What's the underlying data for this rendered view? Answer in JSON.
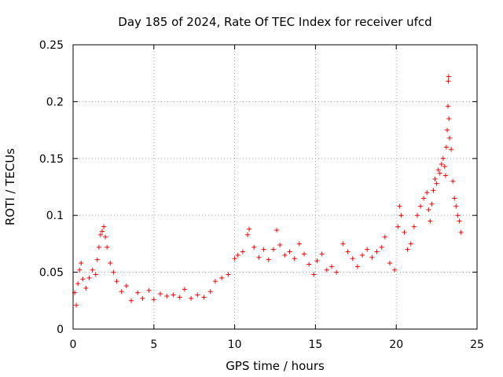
{
  "chart_data": {
    "type": "scatter",
    "title": "Day 185 of 2024, Rate Of TEC Index for receiver ufcd",
    "xlabel": "GPS time / hours",
    "ylabel": "ROTI / TECUs",
    "xlim": [
      0,
      25
    ],
    "ylim": [
      0,
      0.25
    ],
    "xticks": [
      0,
      5,
      10,
      15,
      20,
      25
    ],
    "xtick_labels": [
      "0",
      "5",
      "10",
      "15",
      "20",
      "25"
    ],
    "yticks": [
      0,
      0.05,
      0.1,
      0.15,
      0.2,
      0.25
    ],
    "ytick_labels": [
      "0",
      "0.05",
      "0.1",
      "0.15",
      "0.2",
      "0.25"
    ],
    "grid": true,
    "marker": "+",
    "series": [
      {
        "name": "ROTI",
        "color": "#ff0000",
        "points": [
          [
            0.1,
            0.032
          ],
          [
            0.2,
            0.021
          ],
          [
            0.3,
            0.04
          ],
          [
            0.4,
            0.052
          ],
          [
            0.5,
            0.058
          ],
          [
            0.6,
            0.044
          ],
          [
            0.8,
            0.036
          ],
          [
            1.0,
            0.045
          ],
          [
            1.2,
            0.052
          ],
          [
            1.4,
            0.048
          ],
          [
            1.5,
            0.061
          ],
          [
            1.6,
            0.072
          ],
          [
            1.7,
            0.083
          ],
          [
            1.8,
            0.086
          ],
          [
            1.9,
            0.09
          ],
          [
            2.0,
            0.081
          ],
          [
            2.1,
            0.072
          ],
          [
            2.3,
            0.058
          ],
          [
            2.5,
            0.05
          ],
          [
            2.7,
            0.042
          ],
          [
            3.0,
            0.033
          ],
          [
            3.3,
            0.038
          ],
          [
            3.6,
            0.025
          ],
          [
            4.0,
            0.032
          ],
          [
            4.3,
            0.027
          ],
          [
            4.7,
            0.034
          ],
          [
            5.0,
            0.026
          ],
          [
            5.4,
            0.031
          ],
          [
            5.8,
            0.029
          ],
          [
            6.2,
            0.03
          ],
          [
            6.6,
            0.028
          ],
          [
            6.9,
            0.035
          ],
          [
            7.3,
            0.027
          ],
          [
            7.7,
            0.03
          ],
          [
            8.1,
            0.028
          ],
          [
            8.5,
            0.033
          ],
          [
            8.8,
            0.042
          ],
          [
            9.2,
            0.045
          ],
          [
            9.6,
            0.048
          ],
          [
            10.0,
            0.062
          ],
          [
            10.2,
            0.065
          ],
          [
            10.5,
            0.068
          ],
          [
            10.8,
            0.083
          ],
          [
            10.9,
            0.088
          ],
          [
            11.2,
            0.072
          ],
          [
            11.5,
            0.063
          ],
          [
            11.8,
            0.07
          ],
          [
            12.1,
            0.061
          ],
          [
            12.4,
            0.07
          ],
          [
            12.6,
            0.087
          ],
          [
            12.8,
            0.074
          ],
          [
            13.1,
            0.065
          ],
          [
            13.4,
            0.068
          ],
          [
            13.7,
            0.062
          ],
          [
            14.0,
            0.075
          ],
          [
            14.3,
            0.066
          ],
          [
            14.6,
            0.057
          ],
          [
            14.9,
            0.048
          ],
          [
            15.1,
            0.06
          ],
          [
            15.4,
            0.066
          ],
          [
            15.7,
            0.052
          ],
          [
            16.0,
            0.055
          ],
          [
            16.3,
            0.05
          ],
          [
            16.7,
            0.075
          ],
          [
            17.0,
            0.068
          ],
          [
            17.3,
            0.062
          ],
          [
            17.6,
            0.055
          ],
          [
            17.9,
            0.065
          ],
          [
            18.2,
            0.07
          ],
          [
            18.5,
            0.063
          ],
          [
            18.8,
            0.068
          ],
          [
            19.1,
            0.072
          ],
          [
            19.3,
            0.081
          ],
          [
            19.6,
            0.058
          ],
          [
            19.9,
            0.052
          ],
          [
            20.1,
            0.09
          ],
          [
            20.2,
            0.108
          ],
          [
            20.3,
            0.1
          ],
          [
            20.5,
            0.085
          ],
          [
            20.7,
            0.07
          ],
          [
            20.9,
            0.075
          ],
          [
            21.1,
            0.09
          ],
          [
            21.3,
            0.1
          ],
          [
            21.5,
            0.108
          ],
          [
            21.7,
            0.115
          ],
          [
            21.9,
            0.12
          ],
          [
            22.0,
            0.105
          ],
          [
            22.1,
            0.095
          ],
          [
            22.2,
            0.11
          ],
          [
            22.3,
            0.122
          ],
          [
            22.4,
            0.132
          ],
          [
            22.5,
            0.128
          ],
          [
            22.6,
            0.14
          ],
          [
            22.7,
            0.137
          ],
          [
            22.8,
            0.145
          ],
          [
            22.9,
            0.15
          ],
          [
            23.0,
            0.143
          ],
          [
            23.05,
            0.135
          ],
          [
            23.1,
            0.16
          ],
          [
            23.15,
            0.175
          ],
          [
            23.2,
            0.196
          ],
          [
            23.22,
            0.218
          ],
          [
            23.24,
            0.222
          ],
          [
            23.26,
            0.185
          ],
          [
            23.3,
            0.168
          ],
          [
            23.4,
            0.158
          ],
          [
            23.5,
            0.13
          ],
          [
            23.6,
            0.115
          ],
          [
            23.7,
            0.108
          ],
          [
            23.8,
            0.1
          ],
          [
            23.9,
            0.095
          ],
          [
            24.0,
            0.085
          ]
        ]
      }
    ]
  }
}
